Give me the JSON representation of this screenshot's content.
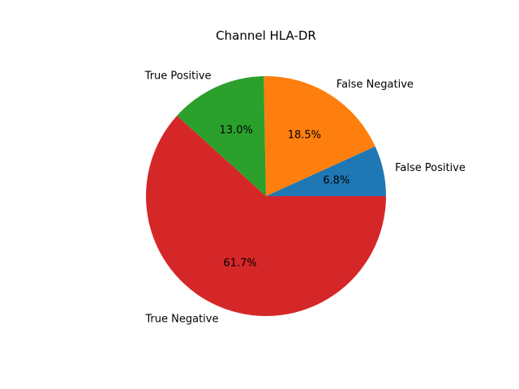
{
  "chart_data": {
    "type": "pie",
    "title": "Channel HLA-DR",
    "slices": [
      {
        "label": "False Positive",
        "value": 6.8,
        "pct_label": "6.8%",
        "color": "#1f77b4"
      },
      {
        "label": "False Negative",
        "value": 18.5,
        "pct_label": "18.5%",
        "color": "#ff7f0e"
      },
      {
        "label": "True Positive",
        "value": 13.0,
        "pct_label": "13.0%",
        "color": "#2ca02c"
      },
      {
        "label": "True Negative",
        "value": 61.7,
        "pct_label": "61.7%",
        "color": "#d62728"
      }
    ],
    "start_angle": 0,
    "direction": "counterclockwise",
    "legend": "none"
  }
}
